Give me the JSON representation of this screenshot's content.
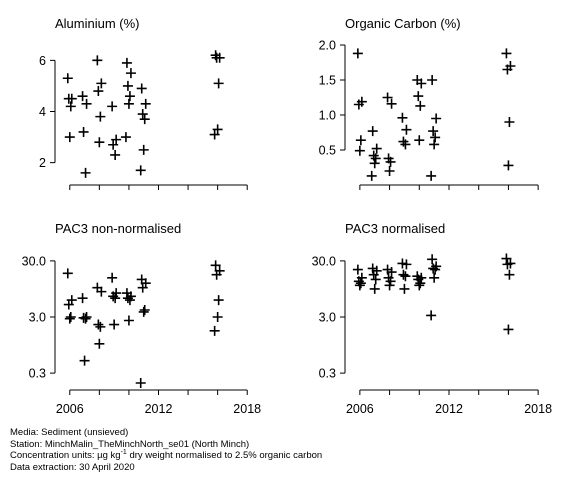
{
  "chart_data": [
    {
      "type": "scatter",
      "title": "Aluminium (%)",
      "ylog": false,
      "xlim": [
        2005,
        2019
      ],
      "ylim": [
        1.4,
        6.6
      ],
      "xticks": [
        2006,
        2012,
        2018
      ],
      "xtick_labels": [
        "2006",
        "2012",
        "2018"
      ],
      "yticks": [
        2,
        4,
        6
      ],
      "ytick_labels": [
        "2",
        "4",
        "6"
      ],
      "show_x_labels": false,
      "x": [
        2006,
        2006,
        2006,
        2006,
        2006,
        2007,
        2007,
        2007,
        2007,
        2008,
        2008,
        2008,
        2008,
        2008,
        2009,
        2009,
        2009,
        2009,
        2010,
        2010,
        2010,
        2010,
        2010,
        2010,
        2011,
        2011,
        2011,
        2011,
        2011,
        2011,
        2016,
        2016,
        2016,
        2016,
        2016,
        2016
      ],
      "y": [
        5.3,
        4.5,
        4.5,
        4.2,
        3.0,
        4.6,
        4.3,
        3.2,
        1.6,
        6.0,
        5.1,
        4.8,
        3.8,
        2.8,
        4.2,
        2.9,
        2.7,
        2.3,
        5.9,
        5.5,
        5.0,
        4.6,
        4.3,
        3.0,
        4.9,
        4.3,
        3.9,
        3.7,
        2.5,
        1.7,
        6.2,
        6.1,
        6.1,
        5.1,
        3.3,
        3.1
      ]
    },
    {
      "type": "scatter",
      "title": "Organic Carbon (%)",
      "ylog": false,
      "xlim": [
        2005,
        2019
      ],
      "ylim": [
        0.1,
        2.0
      ],
      "xticks": [
        2006,
        2012,
        2018
      ],
      "xtick_labels": [
        "2006",
        "2012",
        "2018"
      ],
      "yticks": [
        0.5,
        1.0,
        1.5,
        2.0
      ],
      "ytick_labels": [
        "0.5",
        "1.0",
        "1.5",
        "2.0"
      ],
      "show_x_labels": false,
      "x": [
        2006,
        2006,
        2006,
        2006,
        2006,
        2007,
        2007,
        2007,
        2007,
        2007,
        2007,
        2008,
        2008,
        2008,
        2008,
        2008,
        2009,
        2009,
        2009,
        2009,
        2010,
        2010,
        2010,
        2010,
        2010,
        2011,
        2011,
        2011,
        2011,
        2011,
        2011,
        2016,
        2016,
        2016,
        2016,
        2016
      ],
      "y": [
        1.88,
        1.19,
        1.15,
        0.64,
        0.49,
        0.77,
        0.52,
        0.42,
        0.38,
        0.31,
        0.13,
        1.25,
        1.16,
        0.38,
        0.33,
        0.2,
        0.96,
        0.79,
        0.62,
        0.58,
        1.5,
        1.45,
        1.27,
        1.13,
        0.64,
        1.5,
        0.95,
        0.77,
        0.68,
        0.58,
        0.13,
        1.88,
        1.7,
        1.65,
        0.9,
        0.28
      ]
    },
    {
      "type": "scatter",
      "title": "PAC3 non-normalised",
      "ylog": true,
      "xlim": [
        2005,
        2019
      ],
      "ylim": [
        0.2,
        45.0
      ],
      "xticks": [
        2006,
        2012,
        2018
      ],
      "xtick_labels": [
        "2006",
        "2012",
        "2018"
      ],
      "yticks": [
        0.3,
        3.0,
        30.0
      ],
      "ytick_labels": [
        "0.3",
        "3.0",
        "30.0"
      ],
      "show_x_labels": true,
      "x": [
        2006,
        2006,
        2006,
        2006,
        2006,
        2007,
        2007,
        2007,
        2007,
        2007,
        2008,
        2008,
        2008,
        2008,
        2008,
        2009,
        2009,
        2009,
        2009,
        2009,
        2010,
        2010,
        2010,
        2010,
        2010,
        2011,
        2011,
        2011,
        2011,
        2011,
        2011,
        2016,
        2016,
        2016,
        2016,
        2016,
        2016
      ],
      "y": [
        18.0,
        6.0,
        5.0,
        3.0,
        2.8,
        6.5,
        3.0,
        2.9,
        2.8,
        0.5,
        10.0,
        8.5,
        2.2,
        2.0,
        1.0,
        15.0,
        8.0,
        7.0,
        6.5,
        2.2,
        8.0,
        7.0,
        6.5,
        6.0,
        2.6,
        14.0,
        12.0,
        10.0,
        4.0,
        3.7,
        0.2,
        25.0,
        20.0,
        17.0,
        6.0,
        3.0,
        1.7
      ]
    },
    {
      "type": "scatter",
      "title": "PAC3 normalised",
      "ylog": true,
      "xlim": [
        2005,
        2019
      ],
      "ylim": [
        0.2,
        45.0
      ],
      "xticks": [
        2006,
        2012,
        2018
      ],
      "xtick_labels": [
        "2006",
        "2012",
        "2018"
      ],
      "yticks": [
        0.3,
        3.0,
        30.0
      ],
      "ytick_labels": [
        "0.3",
        "3.0",
        "30.0"
      ],
      "show_x_labels": true,
      "x": [
        2006,
        2006,
        2006,
        2006,
        2006,
        2007,
        2007,
        2007,
        2007,
        2007,
        2008,
        2008,
        2008,
        2008,
        2008,
        2009,
        2009,
        2009,
        2009,
        2009,
        2010,
        2010,
        2010,
        2010,
        2010,
        2011,
        2011,
        2011,
        2011,
        2011,
        2011,
        2016,
        2016,
        2016,
        2016,
        2016
      ],
      "y": [
        21.0,
        15.0,
        13.0,
        12.0,
        11.0,
        22.0,
        20.0,
        17.0,
        14.0,
        9.5,
        21.0,
        19.0,
        15.0,
        13.0,
        11.0,
        27.0,
        26.0,
        17.0,
        16.0,
        9.5,
        16.0,
        15.0,
        14.0,
        12.0,
        11.0,
        32.0,
        24.0,
        22.0,
        21.0,
        15.0,
        3.2,
        33.0,
        27.0,
        26.0,
        17.0,
        1.8
      ]
    }
  ],
  "footer": {
    "media": "Media: Sediment (unsieved)",
    "station": "Station: MinchMalin_TheMinchNorth_se01 (North Minch)",
    "units_prefix": "Concentration units:  µg kg",
    "units_sup": "-1",
    "units_suffix": " dry weight normalised to 2.5% organic carbon",
    "extraction": "Data extraction: 30 April 2020"
  }
}
